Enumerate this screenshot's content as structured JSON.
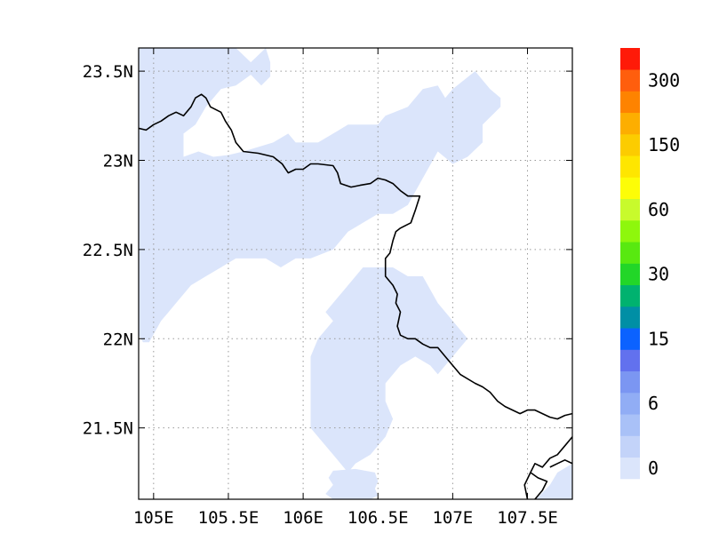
{
  "map": {
    "lon_range": [
      104.9,
      107.8
    ],
    "lat_range": [
      21.1,
      23.63
    ],
    "x_ticks": [
      {
        "value": 105.0,
        "label": "105E"
      },
      {
        "value": 105.5,
        "label": "105.5E"
      },
      {
        "value": 106.0,
        "label": "106E"
      },
      {
        "value": 106.5,
        "label": "106.5E"
      },
      {
        "value": 107.0,
        "label": "107E"
      },
      {
        "value": 107.5,
        "label": "107.5E"
      }
    ],
    "y_ticks": [
      {
        "value": 23.5,
        "label": "23.5N"
      },
      {
        "value": 23.0,
        "label": "23N"
      },
      {
        "value": 22.5,
        "label": "22.5N"
      },
      {
        "value": 22.0,
        "label": "22N"
      },
      {
        "value": 21.5,
        "label": "21.5N"
      }
    ],
    "gridlines": true,
    "fill_color": "#dbe5fb",
    "border_color": "#000000",
    "shaded_regions": [
      [
        [
          104.9,
          23.63
        ],
        [
          105.55,
          23.63
        ],
        [
          105.65,
          23.55
        ],
        [
          105.75,
          23.63
        ],
        [
          105.78,
          23.55
        ],
        [
          105.78,
          23.47
        ],
        [
          105.72,
          23.42
        ],
        [
          105.65,
          23.48
        ],
        [
          105.55,
          23.42
        ],
        [
          105.45,
          23.4
        ],
        [
          105.35,
          23.3
        ],
        [
          105.28,
          23.2
        ],
        [
          105.2,
          23.15
        ],
        [
          105.2,
          23.02
        ],
        [
          105.3,
          23.05
        ],
        [
          105.4,
          23.02
        ],
        [
          105.5,
          23.03
        ],
        [
          105.6,
          23.05
        ],
        [
          105.8,
          23.1
        ],
        [
          105.9,
          23.15
        ],
        [
          105.95,
          23.1
        ],
        [
          106.1,
          23.1
        ],
        [
          106.2,
          23.15
        ],
        [
          106.3,
          23.2
        ],
        [
          106.5,
          23.2
        ],
        [
          106.55,
          23.25
        ],
        [
          106.7,
          23.3
        ],
        [
          106.8,
          23.4
        ],
        [
          106.9,
          23.42
        ],
        [
          106.95,
          23.35
        ],
        [
          107.0,
          23.4
        ],
        [
          107.15,
          23.5
        ],
        [
          107.25,
          23.4
        ],
        [
          107.32,
          23.35
        ],
        [
          107.32,
          23.3
        ],
        [
          107.2,
          23.2
        ],
        [
          107.2,
          23.1
        ],
        [
          107.1,
          23.02
        ],
        [
          107.0,
          22.98
        ],
        [
          106.9,
          23.05
        ],
        [
          106.8,
          22.9
        ],
        [
          106.7,
          22.75
        ],
        [
          106.6,
          22.7
        ],
        [
          106.5,
          22.7
        ],
        [
          106.4,
          22.65
        ],
        [
          106.3,
          22.6
        ],
        [
          106.2,
          22.5
        ],
        [
          106.05,
          22.45
        ],
        [
          105.95,
          22.45
        ],
        [
          105.85,
          22.4
        ],
        [
          105.75,
          22.45
        ],
        [
          105.55,
          22.45
        ],
        [
          105.45,
          22.4
        ],
        [
          105.35,
          22.35
        ],
        [
          105.25,
          22.3
        ],
        [
          105.2,
          22.25
        ],
        [
          105.15,
          22.2
        ],
        [
          105.1,
          22.15
        ],
        [
          105.05,
          22.1
        ],
        [
          104.97,
          21.98
        ],
        [
          104.93,
          21.98
        ],
        [
          104.9,
          22.02
        ]
      ],
      [
        [
          106.15,
          22.15
        ],
        [
          106.3,
          22.3
        ],
        [
          106.4,
          22.4
        ],
        [
          106.6,
          22.4
        ],
        [
          106.7,
          22.35
        ],
        [
          106.8,
          22.35
        ],
        [
          106.9,
          22.2
        ],
        [
          107.0,
          22.1
        ],
        [
          107.1,
          22.0
        ],
        [
          107.05,
          21.95
        ],
        [
          106.95,
          21.85
        ],
        [
          106.9,
          21.8
        ],
        [
          106.85,
          21.85
        ],
        [
          106.75,
          21.9
        ],
        [
          106.65,
          21.85
        ],
        [
          106.55,
          21.75
        ],
        [
          106.55,
          21.65
        ],
        [
          106.6,
          21.55
        ],
        [
          106.55,
          21.45
        ],
        [
          106.5,
          21.4
        ],
        [
          106.45,
          21.35
        ],
        [
          106.35,
          21.3
        ],
        [
          106.3,
          21.25
        ],
        [
          106.2,
          21.35
        ],
        [
          106.1,
          21.45
        ],
        [
          106.05,
          21.5
        ],
        [
          106.05,
          21.9
        ],
        [
          106.1,
          22.0
        ],
        [
          106.2,
          22.1
        ]
      ],
      [
        [
          106.2,
          21.26
        ],
        [
          106.35,
          21.27
        ],
        [
          106.48,
          21.25
        ],
        [
          106.5,
          21.2
        ],
        [
          106.48,
          21.16
        ],
        [
          106.5,
          21.12
        ],
        [
          106.45,
          21.1
        ],
        [
          106.2,
          21.1
        ],
        [
          106.15,
          21.13
        ],
        [
          106.2,
          21.18
        ],
        [
          106.17,
          21.22
        ]
      ],
      [
        [
          107.8,
          21.1
        ],
        [
          107.8,
          21.3
        ],
        [
          107.7,
          21.25
        ],
        [
          107.65,
          21.18
        ],
        [
          107.58,
          21.12
        ],
        [
          107.55,
          21.1
        ]
      ]
    ],
    "borders": [
      [
        [
          104.9,
          23.18
        ],
        [
          104.95,
          23.17
        ],
        [
          105.0,
          23.2
        ],
        [
          105.05,
          23.22
        ],
        [
          105.1,
          23.25
        ],
        [
          105.15,
          23.27
        ],
        [
          105.2,
          23.25
        ],
        [
          105.25,
          23.3
        ],
        [
          105.28,
          23.35
        ],
        [
          105.32,
          23.37
        ],
        [
          105.35,
          23.35
        ],
        [
          105.38,
          23.3
        ],
        [
          105.45,
          23.27
        ],
        [
          105.48,
          23.22
        ],
        [
          105.52,
          23.17
        ],
        [
          105.55,
          23.1
        ],
        [
          105.6,
          23.05
        ],
        [
          105.7,
          23.04
        ],
        [
          105.8,
          23.02
        ],
        [
          105.86,
          22.98
        ],
        [
          105.9,
          22.93
        ],
        [
          105.95,
          22.95
        ],
        [
          106.0,
          22.95
        ],
        [
          106.05,
          22.98
        ],
        [
          106.1,
          22.98
        ],
        [
          106.2,
          22.97
        ],
        [
          106.23,
          22.93
        ],
        [
          106.25,
          22.87
        ],
        [
          106.32,
          22.85
        ],
        [
          106.38,
          22.86
        ],
        [
          106.45,
          22.87
        ],
        [
          106.5,
          22.9
        ],
        [
          106.55,
          22.89
        ],
        [
          106.6,
          22.87
        ],
        [
          106.65,
          22.83
        ],
        [
          106.7,
          22.8
        ],
        [
          106.78,
          22.8
        ],
        [
          106.75,
          22.72
        ],
        [
          106.72,
          22.65
        ],
        [
          106.65,
          22.62
        ],
        [
          106.62,
          22.6
        ],
        [
          106.6,
          22.55
        ],
        [
          106.58,
          22.48
        ],
        [
          106.55,
          22.45
        ],
        [
          106.55,
          22.35
        ],
        [
          106.6,
          22.3
        ],
        [
          106.63,
          22.25
        ],
        [
          106.62,
          22.2
        ],
        [
          106.65,
          22.15
        ],
        [
          106.63,
          22.07
        ],
        [
          106.65,
          22.02
        ],
        [
          106.7,
          22.0
        ],
        [
          106.75,
          22.0
        ],
        [
          106.8,
          21.97
        ],
        [
          106.85,
          21.95
        ],
        [
          106.9,
          21.95
        ],
        [
          106.95,
          21.9
        ],
        [
          107.0,
          21.85
        ],
        [
          107.05,
          21.8
        ],
        [
          107.15,
          21.75
        ],
        [
          107.2,
          21.73
        ],
        [
          107.25,
          21.7
        ],
        [
          107.3,
          21.65
        ],
        [
          107.35,
          21.62
        ],
        [
          107.4,
          21.6
        ],
        [
          107.45,
          21.58
        ],
        [
          107.5,
          21.6
        ],
        [
          107.55,
          21.6
        ],
        [
          107.6,
          21.58
        ],
        [
          107.65,
          21.56
        ],
        [
          107.7,
          21.55
        ],
        [
          107.75,
          21.57
        ],
        [
          107.8,
          21.58
        ]
      ],
      [
        [
          107.5,
          21.1
        ],
        [
          107.48,
          21.18
        ],
        [
          107.52,
          21.25
        ],
        [
          107.55,
          21.3
        ],
        [
          107.6,
          21.28
        ],
        [
          107.65,
          21.33
        ],
        [
          107.7,
          21.35
        ],
        [
          107.75,
          21.4
        ],
        [
          107.8,
          21.45
        ]
      ],
      [
        [
          107.55,
          21.1
        ],
        [
          107.6,
          21.15
        ],
        [
          107.63,
          21.2
        ],
        [
          107.57,
          21.22
        ],
        [
          107.52,
          21.25
        ]
      ],
      [
        [
          107.65,
          21.28
        ],
        [
          107.7,
          21.3
        ],
        [
          107.75,
          21.32
        ],
        [
          107.8,
          21.3
        ]
      ]
    ]
  },
  "colorbar": {
    "colors": [
      "#dbe5fb",
      "#c3d3f9",
      "#a9c1f7",
      "#91adf5",
      "#7b96f2",
      "#6271ee",
      "#0b62ff",
      "#008fa5",
      "#00b26f",
      "#22d628",
      "#58e910",
      "#8ef70c",
      "#c8fa2c",
      "#fdfd07",
      "#fee600",
      "#fccc00",
      "#fdae00",
      "#fe8300",
      "#ff5e0d",
      "#ff1a08"
    ],
    "labels": [
      {
        "value": "0",
        "index": 0
      },
      {
        "value": "6",
        "index": 3
      },
      {
        "value": "15",
        "index": 6
      },
      {
        "value": "30",
        "index": 9
      },
      {
        "value": "60",
        "index": 12
      },
      {
        "value": "150",
        "index": 15
      },
      {
        "value": "300",
        "index": 18
      }
    ]
  }
}
